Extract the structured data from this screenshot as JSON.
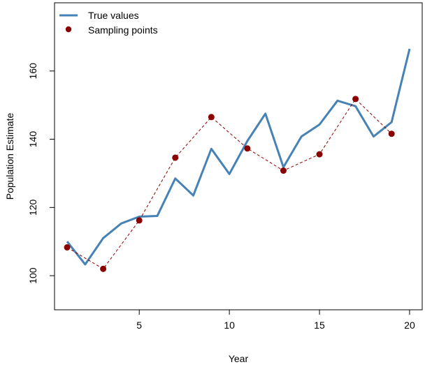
{
  "chart_data": {
    "type": "line",
    "title": "",
    "xlabel": "Year",
    "ylabel": "Population Estimate",
    "xlim": [
      0.3,
      20.7
    ],
    "ylim": [
      90,
      180
    ],
    "x_ticks": [
      5,
      10,
      15,
      20
    ],
    "y_ticks": [
      100,
      120,
      140,
      160
    ],
    "grid": false,
    "legend_position": "top-left",
    "series": [
      {
        "name": "True values",
        "style": "solid line",
        "color": "#4682b4",
        "x": [
          1,
          2,
          3,
          4,
          5,
          6,
          7,
          8,
          9,
          10,
          11,
          12,
          13,
          14,
          15,
          16,
          17,
          18,
          19,
          20
        ],
        "y": [
          110,
          103.3,
          111,
          115.3,
          117.3,
          117.5,
          128.5,
          123.5,
          137.2,
          129.8,
          139.5,
          147.5,
          131.8,
          140.8,
          144.3,
          151.3,
          149.7,
          140.8,
          145,
          166.5
        ]
      },
      {
        "name": "Sampling points",
        "style": "points with dashed line",
        "color": "#8b0000",
        "x": [
          1,
          3,
          5,
          7,
          9,
          11,
          13,
          15,
          17,
          19
        ],
        "y": [
          108.3,
          102,
          116.2,
          134.6,
          146.5,
          137.3,
          130.8,
          135.6,
          151.8,
          141.6
        ]
      }
    ]
  }
}
